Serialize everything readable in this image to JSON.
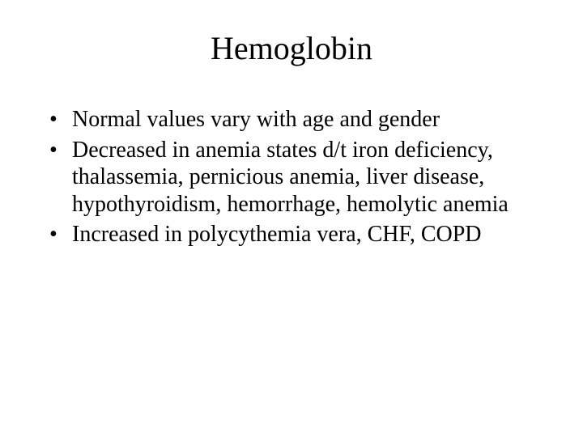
{
  "slide": {
    "title": "Hemoglobin",
    "title_fontsize": 40,
    "body_fontsize": 28,
    "text_color": "#000000",
    "background_color": "#ffffff",
    "font_family": "Times New Roman",
    "bullets": [
      "Normal values vary with age and gender",
      "Decreased in anemia states d/t iron deficiency, thalassemia, pernicious anemia, liver disease, hypothyroidism, hemorrhage, hemolytic anemia",
      "Increased in polycythemia vera, CHF, COPD"
    ]
  }
}
